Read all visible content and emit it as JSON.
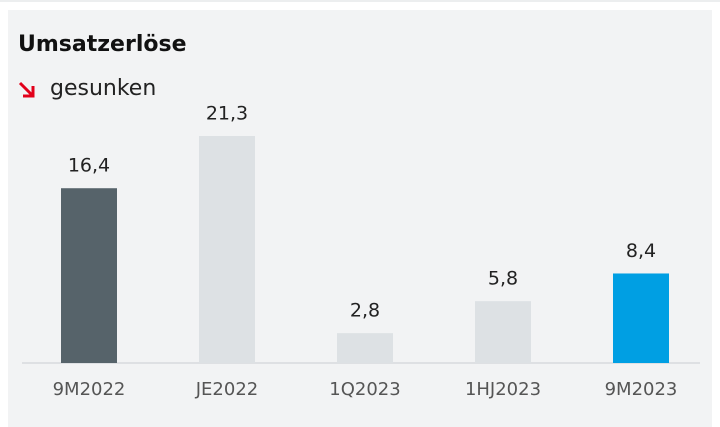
{
  "chart_data": {
    "type": "bar",
    "title": "Umsatzerlöse",
    "subtitle": "gesunken",
    "categories": [
      "9M2022",
      "JE2022",
      "1Q2023",
      "1HJ2023",
      "9M2023"
    ],
    "values": [
      16.4,
      21.3,
      2.8,
      5.8,
      8.4
    ],
    "value_labels": [
      "16,4",
      "21,3",
      "2,8",
      "5,8",
      "8,4"
    ],
    "colors": [
      "#56636a",
      "#dde1e4",
      "#dde1e4",
      "#dde1e4",
      "#009fe3"
    ]
  }
}
